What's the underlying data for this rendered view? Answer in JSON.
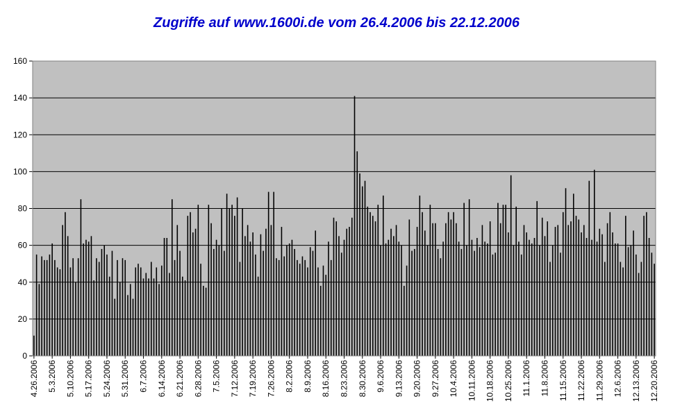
{
  "chart_data": {
    "type": "bar",
    "title": "Zugriffe auf www.1600i.de vom 26.4.2006 bis 22.12.2006",
    "xlabel": "",
    "ylabel": "",
    "ylim": [
      0,
      160
    ],
    "yticks": [
      0,
      20,
      40,
      60,
      80,
      100,
      120,
      140,
      160
    ],
    "grid": true,
    "legend": "none",
    "plot_background": "#c0c0c0",
    "bar_color": "#000000",
    "x_tick_labels": [
      "4.26.2006",
      "5.3.2006",
      "5.10.2006",
      "5.17.2006",
      "5.24.2006",
      "5.31.2006",
      "6.7.2006",
      "6.14.2006",
      "6.21.2006",
      "6.28.2006",
      "7.5.2006",
      "7.12.2006",
      "7.19.2006",
      "7.26.2006",
      "8.2.2006",
      "8.9.2006",
      "8.16.2006",
      "8.23.2006",
      "8.30.2006",
      "9.6.2006",
      "9.13.2006",
      "9.20.2006",
      "9.27.2006",
      "10.4.2006",
      "10.11.2006",
      "10.18.2006",
      "10.25.2006",
      "11.1.2006",
      "11.8.2006",
      "11.15.2006",
      "11.22.2006",
      "11.29.2006",
      "12.6.2006",
      "12.13.2006",
      "12.20.2006"
    ],
    "x_start": "4.26.2006",
    "x_end": "12.22.2006",
    "values": [
      11,
      55,
      39,
      54,
      52,
      52,
      55,
      61,
      52,
      48,
      47,
      71,
      78,
      65,
      48,
      53,
      40,
      53,
      85,
      61,
      63,
      62,
      65,
      41,
      53,
      51,
      58,
      60,
      55,
      43,
      57,
      31,
      52,
      40,
      53,
      52,
      33,
      39,
      31,
      48,
      50,
      48,
      42,
      45,
      42,
      51,
      42,
      48,
      39,
      49,
      64,
      64,
      45,
      85,
      52,
      71,
      57,
      43,
      41,
      76,
      78,
      67,
      69,
      82,
      50,
      38,
      37,
      82,
      72,
      58,
      63,
      60,
      80,
      57,
      88,
      80,
      82,
      76,
      86,
      51,
      80,
      65,
      71,
      62,
      67,
      55,
      43,
      66,
      57,
      69,
      89,
      71,
      89,
      53,
      52,
      70,
      54,
      60,
      61,
      63,
      58,
      52,
      50,
      54,
      52,
      48,
      59,
      57,
      68,
      48,
      38,
      49,
      44,
      62,
      52,
      75,
      73,
      65,
      56,
      63,
      69,
      70,
      75,
      141,
      111,
      99,
      92,
      95,
      81,
      78,
      76,
      73,
      82,
      60,
      87,
      61,
      63,
      69,
      65,
      71,
      62,
      60,
      38,
      49,
      74,
      57,
      58,
      70,
      87,
      78,
      68,
      60,
      82,
      72,
      72,
      58,
      53,
      62,
      72,
      78,
      74,
      78,
      72,
      62,
      58,
      83,
      60,
      85,
      63,
      57,
      64,
      59,
      71,
      62,
      61,
      73,
      55,
      56,
      83,
      72,
      82,
      82,
      67,
      98,
      60,
      81,
      62,
      55,
      71,
      67,
      63,
      61,
      64,
      84,
      60,
      75,
      65,
      73,
      51,
      60,
      70,
      71,
      56,
      78,
      91,
      71,
      73,
      88,
      76,
      74,
      67,
      71,
      64,
      95,
      63,
      101,
      62,
      69,
      66,
      51,
      72,
      78,
      67,
      61,
      61,
      51,
      48,
      76,
      59,
      60,
      68,
      55,
      45,
      51,
      76,
      78,
      64,
      56,
      50
    ]
  }
}
